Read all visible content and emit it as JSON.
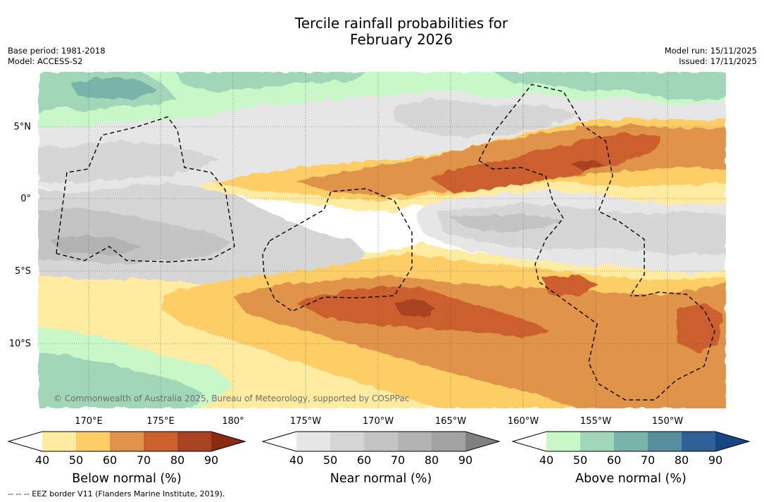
{
  "title_line1": "Tercile rainfall probabilities for",
  "title_line2": "February 2026",
  "base_period": "Base period: 1981-2018",
  "model": "Model: ACCESS-S2",
  "model_run": "Model run: 15/11/2025",
  "issued": "Issued: 17/11/2025",
  "copyright": "© Commonwealth of Australia 2025, Bureau of Meteorology, supported by COSPPac",
  "footer_note": "--  --  -- EEZ border V11 (Flanders Marine Institute, 2019).",
  "latitude_labels": [
    "5°N",
    "0°",
    "5°S",
    "10°S"
  ],
  "longitude_labels": [
    "170°E",
    "175°E",
    "180°",
    "175°W",
    "170°W",
    "165°W",
    "160°W",
    "155°W",
    "150°W"
  ],
  "colorbars": [
    {
      "title": "Below normal (%)",
      "ticks": [
        "40",
        "50",
        "60",
        "70",
        "80",
        "90"
      ],
      "colors": [
        "#ffffff",
        "#ffeca0",
        "#fdcd66",
        "#e0944a",
        "#cc5f2e",
        "#a94222",
        "#8a2a14"
      ]
    },
    {
      "title": "Near normal (%)",
      "ticks": [
        "40",
        "50",
        "60",
        "70",
        "80",
        "90"
      ],
      "colors": [
        "#ffffff",
        "#e6e6e6",
        "#d6d6d6",
        "#c4c4c4",
        "#b3b3b3",
        "#a2a2a2",
        "#808080"
      ]
    },
    {
      "title": "Above normal (%)",
      "ticks": [
        "40",
        "50",
        "60",
        "70",
        "80",
        "90"
      ],
      "colors": [
        "#ffffff",
        "#c8f7c8",
        "#a2d6b8",
        "#7ab3aa",
        "#588f9e",
        "#2f6198",
        "#1a4585"
      ]
    }
  ],
  "colors": {
    "ocean_white": "#ffffff",
    "grid": "#555555"
  }
}
